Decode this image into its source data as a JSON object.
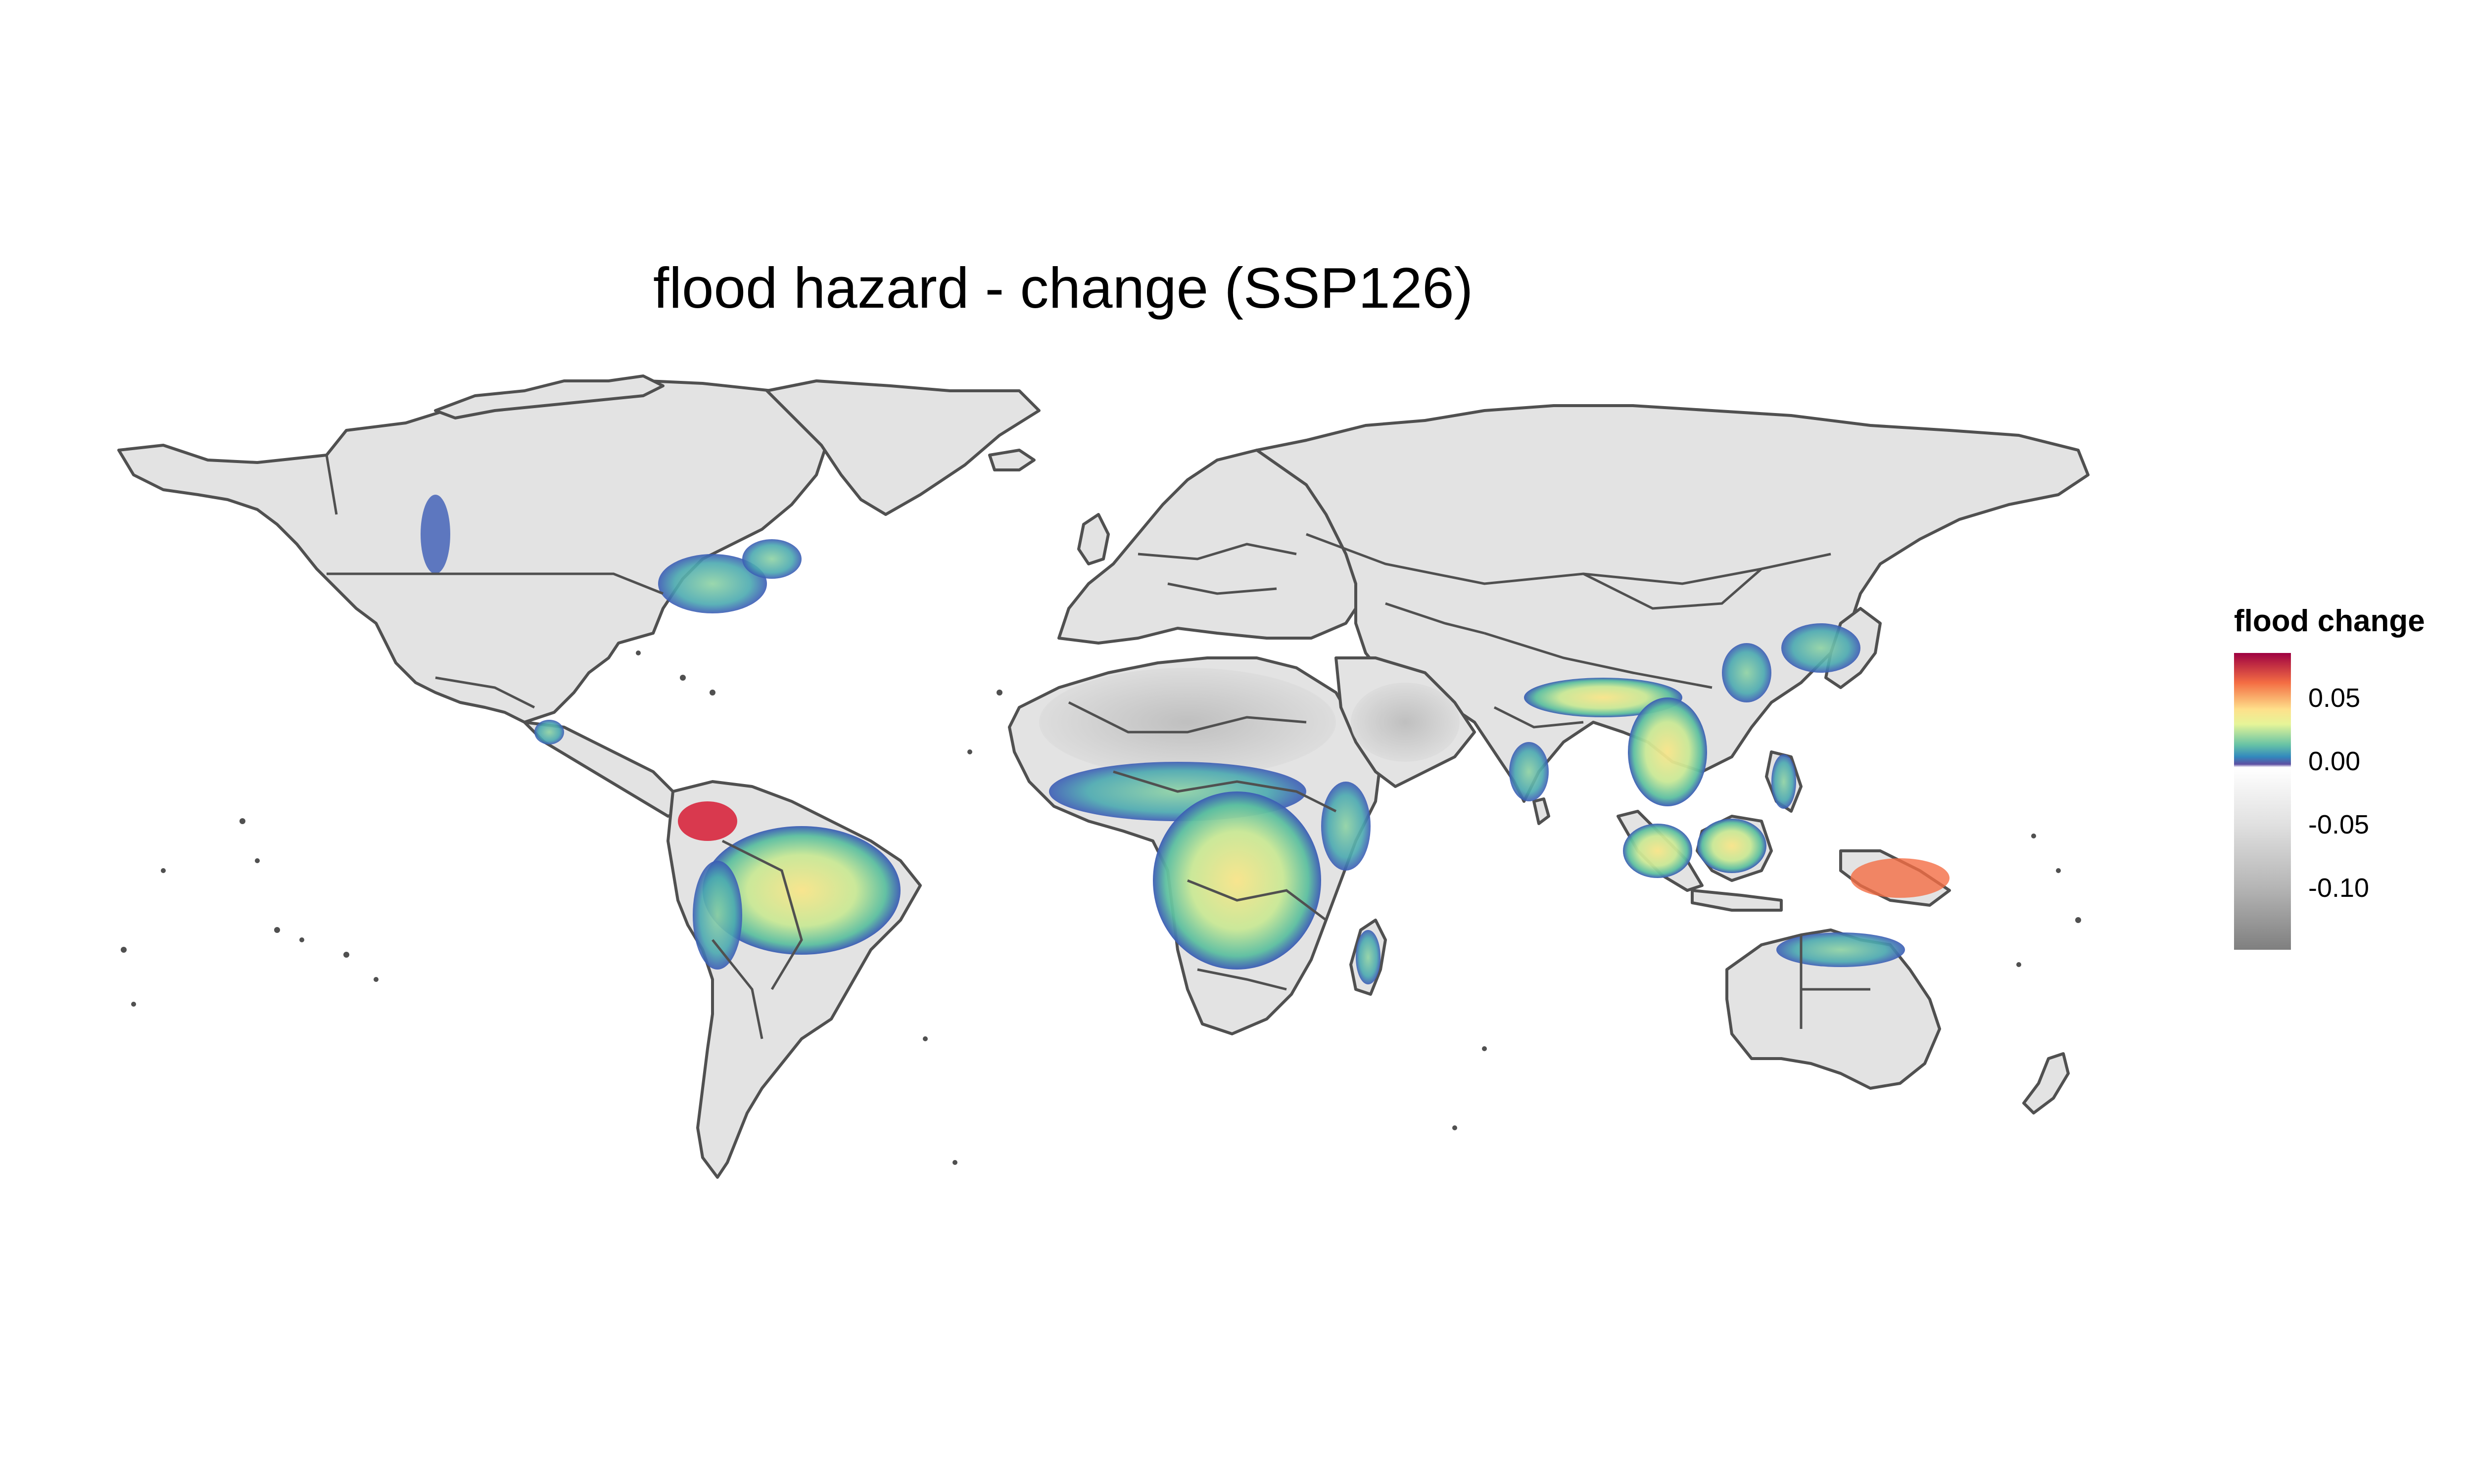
{
  "title": "flood hazard - change (SSP126)",
  "legend": {
    "title": "flood change",
    "ticks": [
      "0.05",
      "0.00",
      "-0.05",
      "-0.10"
    ],
    "gradient_colors": [
      "#9e0142",
      "#f46d43",
      "#fee08b",
      "#e6f598",
      "#66c2a5",
      "#3288bd",
      "#5e4fa2",
      "#ffffff",
      "#e0e0e0",
      "#b5b5b5",
      "#7f7f7f"
    ]
  },
  "colors": {
    "land_base": "#e3e3e3",
    "border": "#505050",
    "increase_low": "#3b5bb5",
    "increase_mid": "#5cbfa0",
    "increase_high": "#f9e58a",
    "increase_max": "#d7263d",
    "decrease": "#bdbdbd"
  }
}
